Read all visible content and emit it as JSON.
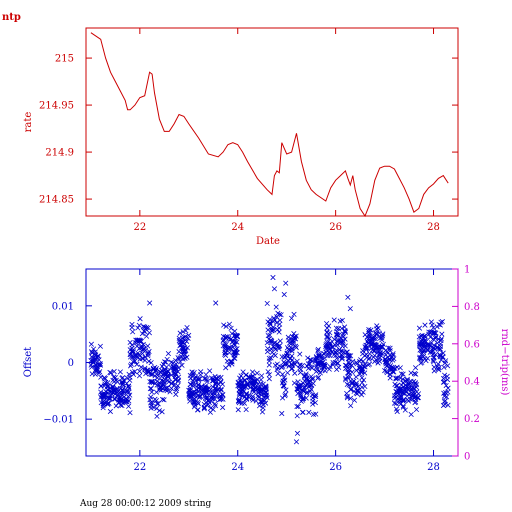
{
  "chart_data": [
    {
      "type": "line",
      "title": "ntp",
      "xlabel": "Date",
      "ylabel": "rate",
      "xlim": [
        20.9,
        28.5
      ],
      "ylim": [
        214.832,
        215.032
      ],
      "xticks": [
        22,
        24,
        26,
        28
      ],
      "xtick_labels": [
        "22",
        "24",
        "26",
        "28"
      ],
      "yticks": [
        214.85,
        214.9,
        214.95,
        215
      ],
      "ytick_labels": [
        "214.85",
        "214.9",
        "214.95",
        "215"
      ],
      "color": "#cc0000",
      "series": [
        {
          "x": [
            21.0,
            21.2,
            21.3,
            21.4,
            21.5,
            21.6,
            21.7,
            21.75,
            21.8,
            21.9,
            22.0,
            22.1,
            22.2,
            22.25,
            22.3,
            22.4,
            22.5,
            22.6,
            22.7,
            22.8,
            22.9,
            23.0,
            23.2,
            23.4,
            23.6,
            23.7,
            23.8,
            23.9,
            24.0,
            24.1,
            24.2,
            24.4,
            24.6,
            24.7,
            24.75,
            24.8,
            24.85,
            24.9,
            25.0,
            25.1,
            25.2,
            25.3,
            25.4,
            25.5,
            25.6,
            25.8,
            25.9,
            26.0,
            26.1,
            26.2,
            26.25,
            26.3,
            26.35,
            26.4,
            26.5,
            26.6,
            26.7,
            26.8,
            26.9,
            27.0,
            27.1,
            27.2,
            27.3,
            27.4,
            27.5,
            27.6,
            27.7,
            27.8,
            27.9,
            28.0,
            28.1,
            28.2,
            28.3
          ],
          "y": [
            215.027,
            215.02,
            215.0,
            214.985,
            214.975,
            214.965,
            214.955,
            214.945,
            214.945,
            214.95,
            214.958,
            214.96,
            214.985,
            214.983,
            214.963,
            214.935,
            214.922,
            214.922,
            214.93,
            214.94,
            214.938,
            214.93,
            214.915,
            214.898,
            214.895,
            214.9,
            214.908,
            214.91,
            214.908,
            214.9,
            214.89,
            214.872,
            214.86,
            214.855,
            214.875,
            214.88,
            214.878,
            214.91,
            214.898,
            214.9,
            214.92,
            214.89,
            214.87,
            214.86,
            214.855,
            214.848,
            214.862,
            214.87,
            214.875,
            214.88,
            214.872,
            214.865,
            214.875,
            214.86,
            214.84,
            214.832,
            214.845,
            214.87,
            214.883,
            214.885,
            214.885,
            214.882,
            214.872,
            214.862,
            214.85,
            214.836,
            214.84,
            214.855,
            214.862,
            214.866,
            214.872,
            214.875,
            214.867
          ]
        }
      ]
    },
    {
      "type": "scatter",
      "xlim": [
        20.9,
        28.5
      ],
      "ylim": [
        -0.0165,
        0.0165
      ],
      "xticks": [
        22,
        24,
        26,
        28
      ],
      "xtick_labels": [
        "22",
        "24",
        "26",
        "28"
      ],
      "yticks": [
        -0.01,
        0,
        0.01
      ],
      "ytick_labels": [
        "−0.01",
        "0",
        "0.01"
      ],
      "ylabel": "Offset",
      "y2label": "rnd−trip(ms)",
      "y2lim": [
        0,
        1
      ],
      "y2ticks": [
        0,
        0.2,
        0.4,
        0.6,
        0.8,
        1
      ],
      "y2tick_labels": [
        "0",
        "0.2",
        "0.4",
        "0.6",
        "0.8",
        "1"
      ],
      "series": [
        {
          "marker": "x",
          "color": "#0000cc",
          "bands": [
            {
              "x0": 21.0,
              "x1": 21.2,
              "center": 0.0005,
              "spread": 0.003
            },
            {
              "x0": 21.2,
              "x1": 21.8,
              "center": -0.005,
              "spread": 0.004
            },
            {
              "x0": 21.8,
              "x1": 22.2,
              "center": 0.0025,
              "spread": 0.006
            },
            {
              "x0": 22.2,
              "x1": 22.5,
              "center": -0.004,
              "spread": 0.005
            },
            {
              "x0": 22.5,
              "x1": 22.8,
              "center": -0.002,
              "spread": 0.004
            },
            {
              "x0": 22.8,
              "x1": 23.0,
              "center": 0.003,
              "spread": 0.004
            },
            {
              "x0": 23.0,
              "x1": 23.7,
              "center": -0.005,
              "spread": 0.004
            },
            {
              "x0": 23.7,
              "x1": 24.0,
              "center": 0.003,
              "spread": 0.004
            },
            {
              "x0": 24.0,
              "x1": 24.6,
              "center": -0.005,
              "spread": 0.004
            },
            {
              "x0": 24.6,
              "x1": 24.9,
              "center": 0.004,
              "spread": 0.008
            },
            {
              "x0": 24.9,
              "x1": 25.0,
              "center": -0.004,
              "spread": 0.006
            },
            {
              "x0": 25.0,
              "x1": 25.2,
              "center": 0.002,
              "spread": 0.006
            },
            {
              "x0": 25.2,
              "x1": 25.6,
              "center": -0.004,
              "spread": 0.006
            },
            {
              "x0": 25.6,
              "x1": 25.8,
              "center": 0.0,
              "spread": 0.003
            },
            {
              "x0": 25.8,
              "x1": 26.2,
              "center": 0.003,
              "spread": 0.005
            },
            {
              "x0": 26.2,
              "x1": 26.6,
              "center": -0.002,
              "spread": 0.006
            },
            {
              "x0": 26.6,
              "x1": 27.0,
              "center": 0.003,
              "spread": 0.004
            },
            {
              "x0": 27.0,
              "x1": 27.2,
              "center": 0.0,
              "spread": 0.003
            },
            {
              "x0": 27.2,
              "x1": 27.7,
              "center": -0.005,
              "spread": 0.005
            },
            {
              "x0": 27.7,
              "x1": 28.2,
              "center": 0.003,
              "spread": 0.005
            },
            {
              "x0": 28.2,
              "x1": 28.3,
              "center": -0.004,
              "spread": 0.005
            }
          ],
          "outliers": [
            {
              "x": 24.72,
              "y": 0.015
            },
            {
              "x": 24.75,
              "y": 0.013
            },
            {
              "x": 24.98,
              "y": 0.014
            },
            {
              "x": 24.95,
              "y": 0.012
            },
            {
              "x": 25.2,
              "y": -0.014
            },
            {
              "x": 25.22,
              "y": -0.0125
            },
            {
              "x": 22.2,
              "y": 0.0105
            },
            {
              "x": 23.55,
              "y": 0.0105
            },
            {
              "x": 26.25,
              "y": 0.0115
            },
            {
              "x": 26.3,
              "y": 0.0095
            },
            {
              "x": 25.15,
              "y": 0.0085
            },
            {
              "x": 25.1,
              "y": 0.0078
            },
            {
              "x": 24.9,
              "y": -0.009
            },
            {
              "x": 22.35,
              "y": -0.0095
            },
            {
              "x": 22.4,
              "y": -0.0085
            }
          ]
        }
      ]
    }
  ],
  "footer": "Aug 28 00:00:12 2009 string"
}
